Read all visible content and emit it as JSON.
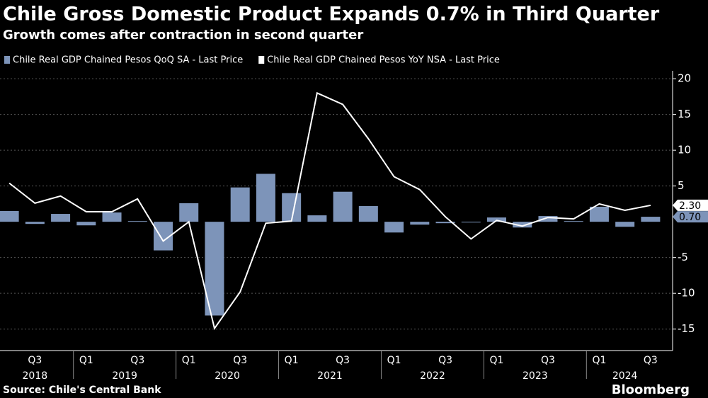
{
  "chart_data": {
    "type": "bar_line",
    "title": "Chile Gross Domestic Product Expands 0.7% in Third Quarter",
    "subtitle": "Growth comes after contraction in second quarter",
    "categories": [
      null,
      "Q3",
      null,
      "Q1",
      null,
      "Q3",
      null,
      "Q1",
      null,
      "Q3",
      null,
      "Q1",
      null,
      "Q3",
      null,
      "Q1",
      null,
      "Q3",
      null,
      "Q1",
      null,
      "Q3",
      null,
      "Q1",
      null,
      "Q3"
    ],
    "year_labels": [
      "2018",
      "2019",
      "2020",
      "2021",
      "2022",
      "2023",
      "2024"
    ],
    "series": [
      {
        "name": "Chile Real GDP Chained Pesos QoQ SA - Last Price",
        "type": "bar",
        "color": "#7d94b9",
        "values": [
          1.5,
          -0.3,
          1.1,
          -0.5,
          1.3,
          0.1,
          -4.0,
          2.6,
          -13.1,
          4.8,
          6.7,
          4.0,
          0.9,
          4.2,
          2.2,
          -1.5,
          -0.4,
          -0.2,
          -0.1,
          0.6,
          -0.8,
          0.8,
          0.1,
          2.1,
          -0.7,
          0.7
        ],
        "last_price_label": "0.70"
      },
      {
        "name": "Chile Real GDP Chained Pesos YoY NSA - Last Price",
        "type": "line",
        "color": "#ffffff",
        "values": [
          5.4,
          2.6,
          3.6,
          1.4,
          1.4,
          3.2,
          -2.7,
          0.0,
          -14.9,
          -9.8,
          -0.2,
          0.1,
          18.0,
          16.4,
          11.6,
          6.3,
          4.5,
          0.7,
          -2.4,
          0.2,
          -0.6,
          0.6,
          0.4,
          2.5,
          1.6,
          2.3
        ],
        "last_price_label": "2.30"
      }
    ],
    "ylim": [
      -18,
      21.1
    ],
    "yticks": [
      -15,
      -10,
      -5,
      5,
      10,
      15,
      20
    ],
    "grid": true,
    "source": "Source: Chile's Central Bank",
    "brand": "Bloomberg"
  }
}
